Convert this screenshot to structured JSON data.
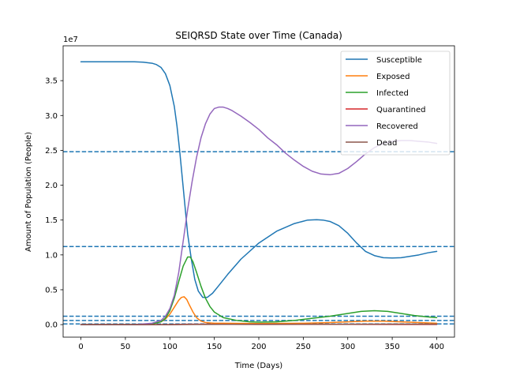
{
  "chart_data": {
    "type": "line",
    "title": "SEIQRSD State over Time (Canada)",
    "xlabel": "Time (Days)",
    "ylabel": "Amount of Population (People)",
    "y_offset_label": "1e7",
    "xlim": [
      -20,
      420
    ],
    "ylim": [
      -0.18,
      4.0
    ],
    "xticks": [
      0,
      50,
      100,
      150,
      200,
      250,
      300,
      350,
      400
    ],
    "yticks": [
      0.0,
      0.5,
      1.0,
      1.5,
      2.0,
      2.5,
      3.0,
      3.5
    ],
    "ytick_labels": [
      "0.0",
      "0.5",
      "1.0",
      "1.5",
      "2.0",
      "2.5",
      "3.0",
      "3.5"
    ],
    "grid": false,
    "legend_placement": "top-right",
    "series": [
      {
        "name": "Susceptible",
        "color": "#1f77b4",
        "x": [
          0,
          20,
          40,
          60,
          70,
          80,
          85,
          90,
          95,
          100,
          105,
          108,
          111,
          114,
          117,
          120,
          124,
          128,
          132,
          137,
          142,
          148,
          155,
          165,
          180,
          200,
          220,
          240,
          255,
          265,
          272,
          280,
          290,
          300,
          310,
          320,
          330,
          340,
          350,
          360,
          370,
          380,
          390,
          400
        ],
        "y": [
          3.77,
          3.77,
          3.77,
          3.77,
          3.765,
          3.75,
          3.73,
          3.69,
          3.6,
          3.43,
          3.13,
          2.85,
          2.5,
          2.1,
          1.7,
          1.3,
          0.95,
          0.65,
          0.48,
          0.39,
          0.39,
          0.45,
          0.56,
          0.72,
          0.94,
          1.17,
          1.34,
          1.45,
          1.5,
          1.505,
          1.5,
          1.48,
          1.42,
          1.31,
          1.17,
          1.05,
          0.99,
          0.96,
          0.955,
          0.96,
          0.98,
          1.0,
          1.03,
          1.05
        ]
      },
      {
        "name": "Exposed",
        "color": "#ff7f0e",
        "x": [
          0,
          60,
          80,
          90,
          95,
          100,
          105,
          110,
          113,
          116,
          119,
          122,
          126,
          130,
          135,
          140,
          150,
          160,
          200,
          250,
          280,
          300,
          320,
          340,
          360,
          380,
          400
        ],
        "y": [
          0.0,
          0.0,
          0.01,
          0.04,
          0.08,
          0.15,
          0.25,
          0.35,
          0.39,
          0.4,
          0.36,
          0.28,
          0.18,
          0.1,
          0.05,
          0.03,
          0.02,
          0.02,
          0.015,
          0.02,
          0.03,
          0.04,
          0.05,
          0.05,
          0.04,
          0.03,
          0.02
        ]
      },
      {
        "name": "Infected",
        "color": "#2ca02c",
        "x": [
          0,
          60,
          80,
          90,
          95,
          100,
          105,
          110,
          115,
          120,
          123,
          126,
          130,
          135,
          140,
          145,
          150,
          160,
          175,
          190,
          200,
          220,
          240,
          260,
          280,
          300,
          315,
          330,
          345,
          360,
          375,
          390,
          400
        ],
        "y": [
          0.0,
          0.0,
          0.01,
          0.04,
          0.09,
          0.2,
          0.38,
          0.62,
          0.84,
          0.97,
          0.97,
          0.9,
          0.75,
          0.55,
          0.38,
          0.26,
          0.18,
          0.1,
          0.06,
          0.04,
          0.035,
          0.04,
          0.06,
          0.09,
          0.12,
          0.16,
          0.19,
          0.2,
          0.19,
          0.16,
          0.13,
          0.11,
          0.1
        ]
      },
      {
        "name": "Quarantined",
        "color": "#d62728",
        "x": [
          0,
          100,
          120,
          140,
          200,
          300,
          400
        ],
        "y": [
          0.0,
          0.0,
          0.005,
          0.005,
          0.003,
          0.004,
          0.003
        ]
      },
      {
        "name": "Recovered",
        "color": "#9467bd",
        "x": [
          0,
          60,
          80,
          90,
          95,
          100,
          105,
          110,
          115,
          120,
          125,
          130,
          135,
          140,
          145,
          150,
          155,
          160,
          165,
          170,
          180,
          190,
          200,
          210,
          220,
          230,
          240,
          250,
          260,
          270,
          280,
          290,
          300,
          310,
          320,
          330,
          340,
          350,
          360,
          370,
          380,
          390,
          400
        ],
        "y": [
          0.0,
          0.0,
          0.02,
          0.06,
          0.12,
          0.23,
          0.42,
          0.75,
          1.2,
          1.65,
          2.05,
          2.4,
          2.68,
          2.88,
          3.02,
          3.1,
          3.12,
          3.12,
          3.1,
          3.07,
          2.99,
          2.9,
          2.8,
          2.68,
          2.58,
          2.46,
          2.36,
          2.27,
          2.2,
          2.16,
          2.15,
          2.17,
          2.24,
          2.34,
          2.45,
          2.54,
          2.6,
          2.63,
          2.64,
          2.64,
          2.63,
          2.62,
          2.6
        ]
      },
      {
        "name": "Dead",
        "color": "#8c564b",
        "x": [
          0,
          100,
          130,
          160,
          250,
          300,
          350,
          400
        ],
        "y": [
          0.0,
          0.0,
          0.002,
          0.004,
          0.005,
          0.006,
          0.007,
          0.007
        ]
      }
    ],
    "reference_lines": [
      {
        "y": 2.48,
        "style": "dashed",
        "color": "#1f77b4"
      },
      {
        "y": 1.12,
        "style": "dashed",
        "color": "#1f77b4"
      },
      {
        "y": 0.12,
        "style": "dashed",
        "color": "#1f77b4"
      },
      {
        "y": 0.06,
        "style": "dashed",
        "color": "#1f77b4"
      },
      {
        "y": 0.01,
        "style": "dashed",
        "color": "#1f77b4"
      }
    ]
  }
}
